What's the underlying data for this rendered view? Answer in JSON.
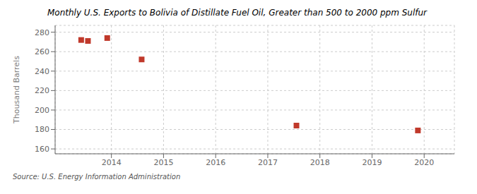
{
  "chart_data": {
    "type": "scatter",
    "title": "Monthly U.S. Exports to Bolivia of Distillate Fuel Oil, Greater than 500 to 2000 ppm Sulfur",
    "ylabel": "Thousand Barrels",
    "annotations": [
      "Source: U.S. Energy Information Administration"
    ],
    "x": [
      2013.42,
      2013.55,
      2013.92,
      2014.58,
      2017.55,
      2019.88
    ],
    "values": [
      272,
      271,
      274,
      252,
      184,
      179
    ],
    "color": "#c0392b",
    "marker": "square",
    "xlim": [
      2012.92,
      2020.58
    ],
    "xticks": [
      2014,
      2015,
      2016,
      2017,
      2018,
      2019,
      2020
    ],
    "ylim": [
      155,
      287
    ],
    "yticks": [
      160,
      180,
      200,
      220,
      240,
      260,
      280
    ],
    "grid": true
  }
}
